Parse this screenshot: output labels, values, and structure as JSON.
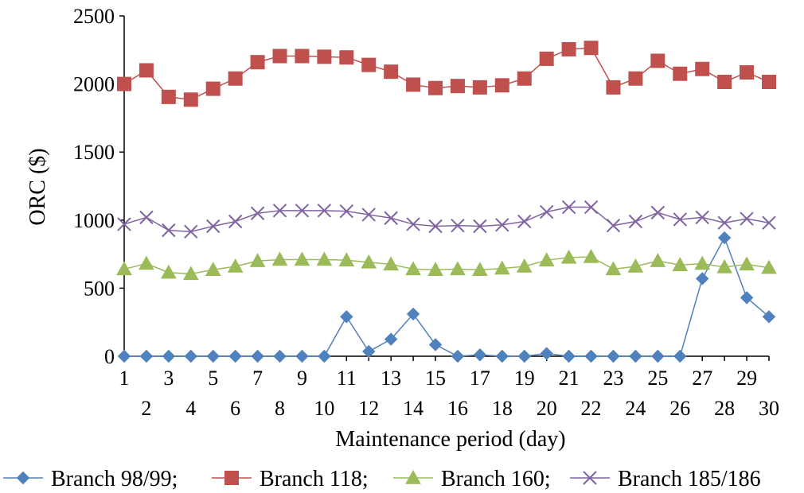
{
  "chart_data": {
    "type": "line",
    "title": "",
    "xlabel": "Maintenance period (day)",
    "ylabel": "ORC ($)",
    "x": [
      1,
      2,
      3,
      4,
      5,
      6,
      7,
      8,
      9,
      10,
      11,
      12,
      13,
      14,
      15,
      16,
      17,
      18,
      19,
      20,
      21,
      22,
      23,
      24,
      25,
      26,
      27,
      28,
      29,
      30
    ],
    "xticks_top": [
      "1",
      "3",
      "5",
      "7",
      "9",
      "11",
      "13",
      "15",
      "17",
      "19",
      "21",
      "23",
      "25",
      "27",
      "29"
    ],
    "xticks_bottom": [
      "2",
      "4",
      "6",
      "8",
      "10",
      "12",
      "14",
      "16",
      "18",
      "20",
      "22",
      "24",
      "26",
      "28",
      "30"
    ],
    "ylim": [
      0,
      2500
    ],
    "yticks": [
      "0",
      "500",
      "1000",
      "1500",
      "2000",
      "2500"
    ],
    "grid": false,
    "legend_position": "bottom",
    "series": [
      {
        "name": "Branch 98/99;",
        "color": "#4f81bd",
        "marker": "diamond",
        "values": [
          0,
          0,
          0,
          0,
          0,
          0,
          0,
          0,
          0,
          0,
          290,
          35,
          125,
          310,
          85,
          0,
          10,
          0,
          0,
          20,
          0,
          0,
          0,
          0,
          0,
          0,
          570,
          870,
          430,
          290
        ]
      },
      {
        "name": "Branch 118;",
        "color": "#c0504d",
        "marker": "square",
        "values": [
          2000,
          2100,
          1905,
          1885,
          1965,
          2040,
          2160,
          2205,
          2205,
          2200,
          2195,
          2140,
          2090,
          1995,
          1970,
          1985,
          1975,
          1990,
          2040,
          2185,
          2255,
          2265,
          1975,
          2040,
          2170,
          2075,
          2110,
          2015,
          2085,
          2015
        ]
      },
      {
        "name": "Branch 160;",
        "color": "#9bbb59",
        "marker": "triangle",
        "values": [
          640,
          680,
          615,
          605,
          635,
          660,
          700,
          710,
          710,
          710,
          705,
          690,
          675,
          640,
          635,
          640,
          635,
          645,
          660,
          705,
          725,
          730,
          640,
          660,
          700,
          670,
          680,
          655,
          675,
          650
        ]
      },
      {
        "name": "Branch 185/186",
        "color": "#8064a2",
        "marker": "x",
        "values": [
          970,
          1020,
          925,
          915,
          955,
          990,
          1050,
          1070,
          1070,
          1070,
          1065,
          1040,
          1015,
          970,
          955,
          960,
          955,
          965,
          990,
          1060,
          1095,
          1095,
          960,
          990,
          1055,
          1005,
          1020,
          980,
          1010,
          980
        ]
      }
    ]
  }
}
